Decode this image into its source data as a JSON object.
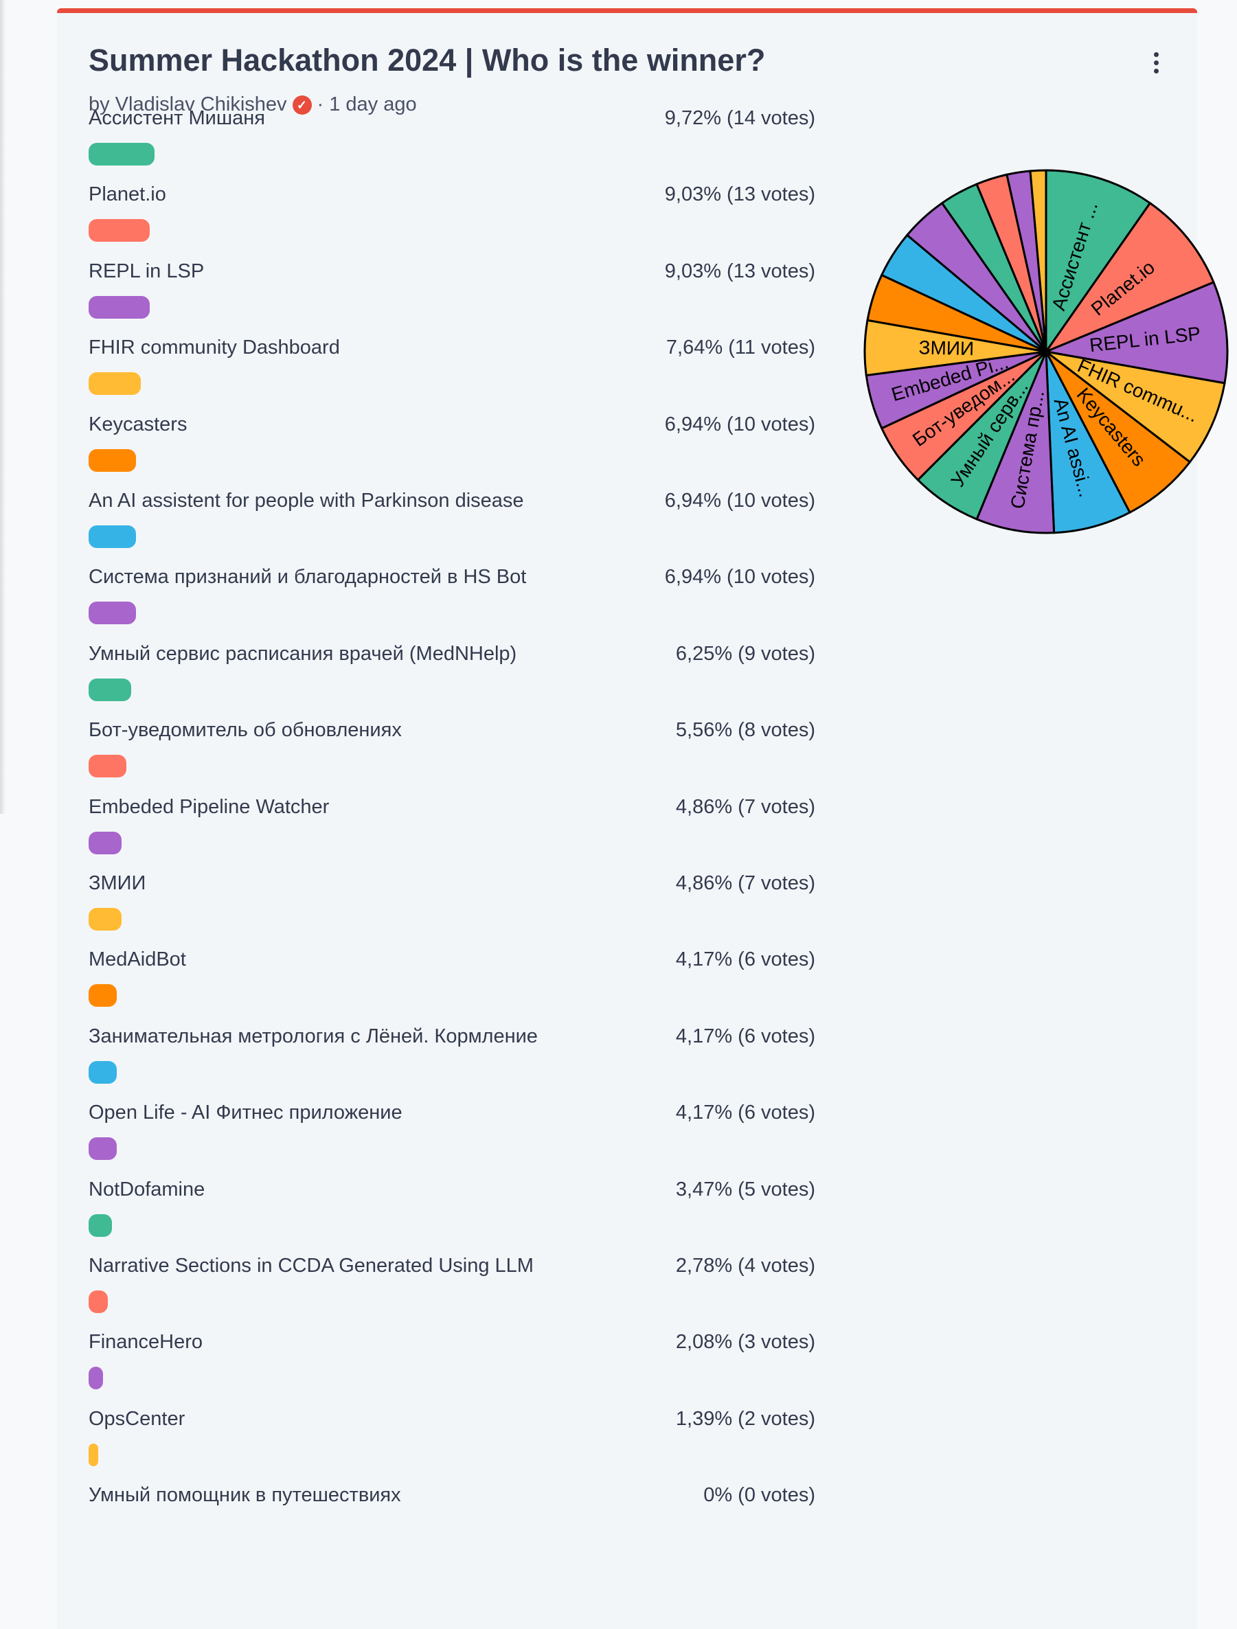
{
  "poll": {
    "title": "Summer Hackathon 2024 | Who is the winner?",
    "author": "by Vladislav Chikishev",
    "time": "· 1 day ago",
    "verified_icon": "check-badge-icon",
    "menu_icon": "kebab-menu-icon",
    "accent": "#e84c3d"
  },
  "options": [
    {
      "label": "Ассистент Мишаня",
      "pct_text": "9,72% (14 votes)",
      "percent": 9.72,
      "votes": 14,
      "color": "#3fba93",
      "pie_label": "Ассистент ..."
    },
    {
      "label": "Planet.io",
      "pct_text": "9,03% (13 votes)",
      "percent": 9.03,
      "votes": 13,
      "color": "#ff7563",
      "pie_label": "Planet.io"
    },
    {
      "label": "REPL in LSP",
      "pct_text": "9,03% (13 votes)",
      "percent": 9.03,
      "votes": 13,
      "color": "#a865cc",
      "pie_label": "REPL in LSP"
    },
    {
      "label": "FHIR community Dashboard",
      "pct_text": "7,64% (11 votes)",
      "percent": 7.64,
      "votes": 11,
      "color": "#ffbb33",
      "pie_label": "FHIR commu..."
    },
    {
      "label": "Keycasters",
      "pct_text": "6,94% (10 votes)",
      "percent": 6.94,
      "votes": 10,
      "color": "#ff8800",
      "pie_label": "Keycasters"
    },
    {
      "label": "An AI assistent for people with Parkinson disease",
      "pct_text": "6,94% (10 votes)",
      "percent": 6.94,
      "votes": 10,
      "color": "#36b3e6",
      "pie_label": "An AI assi..."
    },
    {
      "label": "Система признаний и благодарностей в HS Bot",
      "pct_text": "6,94% (10 votes)",
      "percent": 6.94,
      "votes": 10,
      "color": "#a865cc",
      "pie_label": "Система пр..."
    },
    {
      "label": "Умный сервис расписания врачей (MedNHelp)",
      "pct_text": "6,25% (9 votes)",
      "percent": 6.25,
      "votes": 9,
      "color": "#3fba93",
      "pie_label": "Умный серв..."
    },
    {
      "label": "Бот-уведомитель об обновлениях",
      "pct_text": "5,56% (8 votes)",
      "percent": 5.56,
      "votes": 8,
      "color": "#ff7563",
      "pie_label": "Бот-уведом..."
    },
    {
      "label": "Embeded Pipeline Watcher",
      "pct_text": "4,86% (7 votes)",
      "percent": 4.86,
      "votes": 7,
      "color": "#a865cc",
      "pie_label": "Embeded Pi..."
    },
    {
      "label": "ЗМИИ",
      "pct_text": "4,86% (7 votes)",
      "percent": 4.86,
      "votes": 7,
      "color": "#ffbb33",
      "pie_label": "ЗМИИ"
    },
    {
      "label": "MedAidBot",
      "pct_text": "4,17% (6 votes)",
      "percent": 4.17,
      "votes": 6,
      "color": "#ff8800",
      "pie_label": ""
    },
    {
      "label": "Занимательная метрология с Лёней. Кормление",
      "pct_text": "4,17% (6 votes)",
      "percent": 4.17,
      "votes": 6,
      "color": "#36b3e6",
      "pie_label": ""
    },
    {
      "label": "Open Life - AI Фитнес приложение",
      "pct_text": "4,17% (6 votes)",
      "percent": 4.17,
      "votes": 6,
      "color": "#a865cc",
      "pie_label": ""
    },
    {
      "label": "NotDofamine",
      "pct_text": "3,47% (5 votes)",
      "percent": 3.47,
      "votes": 5,
      "color": "#3fba93",
      "pie_label": ""
    },
    {
      "label": "Narrative Sections in CCDA Generated Using LLM",
      "pct_text": "2,78% (4 votes)",
      "percent": 2.78,
      "votes": 4,
      "color": "#ff7563",
      "pie_label": ""
    },
    {
      "label": "FinanceHero",
      "pct_text": "2,08% (3 votes)",
      "percent": 2.08,
      "votes": 3,
      "color": "#a865cc",
      "pie_label": ""
    },
    {
      "label": "OpsCenter",
      "pct_text": "1,39% (2 votes)",
      "percent": 1.39,
      "votes": 2,
      "color": "#ffbb33",
      "pie_label": ""
    },
    {
      "label": "Умный помощник в путешествиях",
      "pct_text": "0% (0 votes)",
      "percent": 0,
      "votes": 0,
      "color": "#ff8800",
      "pie_label": ""
    }
  ]
}
